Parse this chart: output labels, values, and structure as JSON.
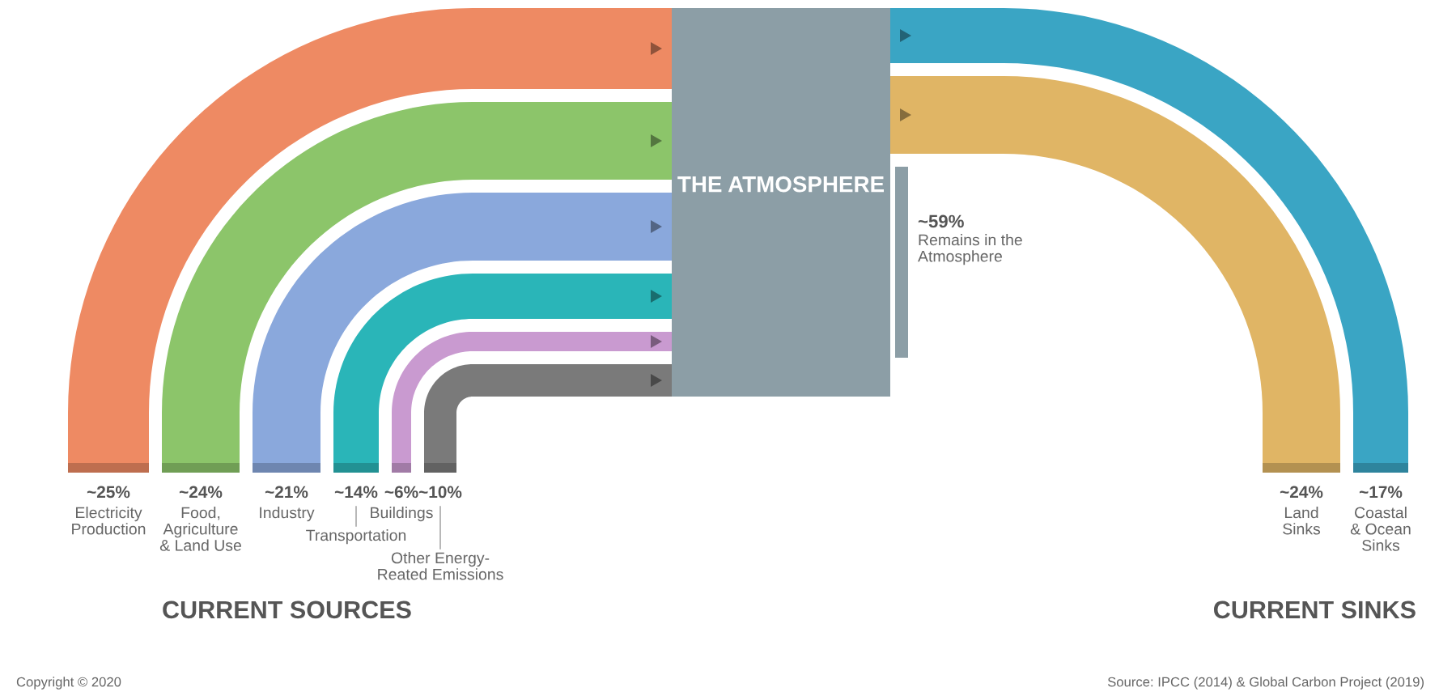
{
  "chart_data": [
    {
      "type": "other",
      "title": "CURRENT SOURCES",
      "categories": [
        "Electricity\nProduction",
        "Food,\nAgriculture\n& Land Use",
        "Industry",
        "Transportation",
        "Buildings",
        "Other Energy-\nReated Emissions"
      ],
      "values": [
        25,
        24,
        21,
        14,
        6,
        10
      ],
      "value_labels": [
        "~25%",
        "~24%",
        "~21%",
        "~14%",
        "~6%",
        "~10%"
      ],
      "colors": [
        "#ee8a63",
        "#8cc56a",
        "#8aa8dc",
        "#2ab5b8",
        "#c99ad0",
        "#7a7a7a"
      ],
      "annotations": [
        "THE ATMOSPHERE",
        "Copyright © 2020"
      ]
    },
    {
      "type": "other",
      "title": "CURRENT SINKS",
      "categories": [
        "Coastal\n& Ocean\nSinks",
        "Land\nSinks",
        "Remains in the\nAtmosphere"
      ],
      "values": [
        17,
        24,
        59
      ],
      "value_labels": [
        "~17%",
        "~24%",
        "~59%"
      ],
      "colors": [
        "#3aa5c4",
        "#e0b565",
        "#8c9ea6"
      ],
      "annotations": [
        "Source: IPCC (2014) & Global Carbon Project (2019)"
      ]
    }
  ]
}
